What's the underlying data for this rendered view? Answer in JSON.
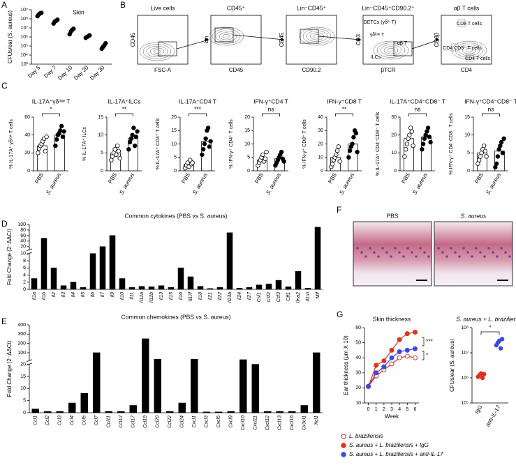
{
  "panel_labels": [
    "A",
    "B",
    "C",
    "D",
    "E",
    "F",
    "G"
  ],
  "gating": {
    "plots": [
      {
        "title": "Live cells",
        "y_label": "CD45",
        "x_label": "FSC-A",
        "gates": []
      },
      {
        "title": "CD45⁺",
        "y_label": "Lin",
        "x_label": "CD45",
        "gates": []
      },
      {
        "title": "Lin⁻CD45⁺",
        "y_label": "CD45",
        "x_label": "CD90.2",
        "gates": []
      },
      {
        "title": "Lin⁻CD45⁺CD90.2⁺",
        "y_label": "CD3",
        "x_label": "βTCR",
        "gates": [
          "DETCs (γδʰⁱ T)",
          "γδˡᵒʷ T",
          "αβ T",
          "ILCs"
        ]
      },
      {
        "title": "αβ T cells",
        "y_label": "CD8β",
        "x_label": "CD4",
        "gates": [
          "CD8 T cells",
          "CD4 CD8⁻ T cells",
          "CD4 T cells"
        ]
      }
    ]
  },
  "histology": {
    "panels": [
      "PBS",
      "S. aureus"
    ]
  },
  "chart_data": [
    {
      "type": "dot",
      "title": "Skin",
      "y_label": "CFUs/ear (S. aureus)",
      "categories": [
        "Day 5",
        "Day 7",
        "Day 10",
        "Day 20",
        "Day 30"
      ],
      "values": [
        [
          200000000,
          300000000,
          400000000,
          450000000
        ],
        [
          30000000,
          50000000,
          60000000,
          80000000
        ],
        [
          2000000,
          4000000,
          6000000,
          8000000
        ],
        [
          800000,
          1000000,
          1200000,
          1500000
        ],
        [
          50000,
          80000,
          120000,
          200000
        ]
      ],
      "color": "#000000",
      "log_scale": true,
      "ylim": [
        1000,
        1000000000
      ],
      "yticks": [
        {
          "value": 1000,
          "label": "10³"
        },
        {
          "value": 10000,
          "label": "10⁴"
        },
        {
          "value": 100000,
          "label": "10⁵"
        },
        {
          "value": 1000000,
          "label": "10⁶"
        },
        {
          "value": 10000000,
          "label": "10⁷"
        },
        {
          "value": 100000000,
          "label": "10⁸"
        },
        {
          "value": 1000000000,
          "label": "10⁹"
        }
      ]
    },
    {
      "type": "bar",
      "title": "IL-17A⁺γδˡᵒʷ T",
      "y_label": "% IL-17A⁺ γδˡᵒʷ T cells",
      "categories": [
        "PBS",
        "S. aureus"
      ],
      "values": [
        28,
        40
      ],
      "points": [
        [
          20,
          25,
          28,
          30,
          33,
          36,
          22,
          38
        ],
        [
          28,
          35,
          40,
          42,
          45,
          50,
          38,
          44
        ]
      ],
      "bar_colors": [
        "#ffffff",
        "#ffffff"
      ],
      "point_fills": [
        "#ffffff",
        "#000000"
      ],
      "annotation": "*",
      "ylim": [
        0,
        60
      ],
      "yticks": [
        0,
        20,
        40,
        60
      ]
    },
    {
      "type": "bar",
      "title": "IL-17A⁺ILCs",
      "y_label": "% IL-17A⁺ ILCs",
      "categories": [
        "PBS",
        "S. aureus"
      ],
      "values": [
        5,
        9
      ],
      "points": [
        [
          3,
          4,
          5,
          6,
          4.5,
          7,
          5.5,
          3.5
        ],
        [
          6,
          8,
          9,
          10,
          12,
          7,
          9.5,
          11
        ]
      ],
      "bar_colors": [
        "#ffffff",
        "#ffffff"
      ],
      "point_fills": [
        "#ffffff",
        "#000000"
      ],
      "annotation": "**",
      "ylim": [
        0,
        15
      ],
      "yticks": [
        0,
        5,
        10,
        15
      ]
    },
    {
      "type": "bar",
      "title": "IL-17A⁺CD4 T",
      "y_label": "% IL-17A⁺ CD4⁺ T cells",
      "categories": [
        "PBS",
        "S. aureus"
      ],
      "values": [
        2.5,
        11
      ],
      "points": [
        [
          1,
          2,
          3,
          1.5,
          4,
          2.5,
          3
        ],
        [
          6,
          8,
          10,
          12,
          15,
          16,
          9,
          11
        ]
      ],
      "bar_colors": [
        "#ffffff",
        "#ffffff"
      ],
      "point_fills": [
        "#ffffff",
        "#000000"
      ],
      "annotation": "***",
      "ylim": [
        0,
        20
      ],
      "yticks": [
        0,
        5,
        10,
        15,
        20
      ]
    },
    {
      "type": "bar",
      "title": "IFN-γ⁺CD4 T",
      "y_label": "% IFN-γ⁺ CD4⁺ T cells",
      "categories": [
        "PBS",
        "S. aureus"
      ],
      "values": [
        4,
        4.5
      ],
      "points": [
        [
          2,
          3,
          4,
          5,
          6,
          3.5,
          4.5,
          7
        ],
        [
          2,
          3,
          4,
          5,
          6,
          7,
          4.5,
          3.5
        ]
      ],
      "bar_colors": [
        "#ffffff",
        "#ffffff"
      ],
      "point_fills": [
        "#ffffff",
        "#000000"
      ],
      "annotation": "ns",
      "ylim": [
        0,
        20
      ],
      "yticks": [
        0,
        5,
        10,
        15,
        20
      ]
    },
    {
      "type": "bar",
      "title": "IFN-γ⁺CD8 T",
      "y_label": "% IFN-γ⁺ CD8⁺ T cells",
      "categories": [
        "PBS",
        "S. aureus"
      ],
      "values": [
        10,
        20
      ],
      "points": [
        [
          3,
          5,
          8,
          10,
          12,
          15,
          18,
          7
        ],
        [
          10,
          15,
          18,
          20,
          25,
          30,
          28,
          14
        ]
      ],
      "bar_colors": [
        "#ffffff",
        "#ffffff"
      ],
      "point_fills": [
        "#ffffff",
        "#000000"
      ],
      "annotation": "**",
      "ylim": [
        0,
        40
      ],
      "yticks": [
        0,
        10,
        20,
        30,
        40
      ]
    },
    {
      "type": "bar",
      "title": "IL-17A⁺CD4⁻CD8⁻ T",
      "y_label": "% IL-17A⁺ CD4⁻CD8⁻ T cells",
      "categories": [
        "PBS",
        "S. aureus"
      ],
      "values": [
        18,
        19
      ],
      "points": [
        [
          8,
          12,
          15,
          18,
          20,
          24,
          22,
          14
        ],
        [
          12,
          15,
          18,
          20,
          22,
          24,
          19,
          16
        ]
      ],
      "bar_colors": [
        "#ffffff",
        "#ffffff"
      ],
      "point_fills": [
        "#ffffff",
        "#000000"
      ],
      "annotation": "ns",
      "ylim": [
        0,
        30
      ],
      "yticks": [
        0,
        10,
        20,
        30
      ]
    },
    {
      "type": "bar",
      "title": "IFN-γ⁺CD4⁻CD8⁻ T",
      "y_label": "% IFN-γ⁺ CD4⁻CD8⁻ T cells",
      "categories": [
        "PBS",
        "S. aureus"
      ],
      "values": [
        5,
        5.5
      ],
      "points": [
        [
          2,
          3,
          4,
          5,
          6,
          7,
          5.5,
          4
        ],
        [
          1,
          2,
          4,
          6,
          7,
          8,
          5,
          9
        ]
      ],
      "bar_colors": [
        "#ffffff",
        "#ffffff"
      ],
      "point_fills": [
        "#ffffff",
        "#000000"
      ],
      "annotation": "ns",
      "ylim": [
        0,
        15
      ],
      "yticks": [
        0,
        5,
        10,
        15
      ]
    },
    {
      "type": "bar",
      "title": "Common cytokines (PBS vs S. aureus)",
      "y_label": "Fold Change (2⁻ΔΔCt)",
      "categories": [
        "Il1a",
        "Il1b",
        "Il2",
        "Il3",
        "Il4",
        "Il5",
        "Il6",
        "Il7",
        "Il9",
        "Il10",
        "Il11",
        "Il12a",
        "Il12b",
        "Il13",
        "Il15",
        "Il16",
        "Il17f",
        "Il18",
        "Il21",
        "Il22",
        "Il23a",
        "Il24",
        "Il27",
        "Csf1",
        "Csf2",
        "Csf3",
        "Ctf1",
        "Ifna2",
        "Il1rn",
        "Mif"
      ],
      "values": [
        3,
        50,
        6,
        1,
        2,
        0.5,
        10,
        20,
        60,
        3,
        0.5,
        0.8,
        0.7,
        1,
        0.5,
        6,
        3.5,
        0.8,
        0.2,
        0.5,
        70,
        0.3,
        0.5,
        1.2,
        1.5,
        2.5,
        0.7,
        5,
        0.3,
        90
      ],
      "color": "#000000",
      "y_segments": [
        {
          "ylim": [
            0,
            10
          ],
          "yticks": [
            0,
            2,
            4,
            6,
            8,
            10
          ]
        },
        {
          "ylim": [
            10,
            100
          ],
          "yticks": [
            20,
            40,
            60,
            80,
            100
          ]
        }
      ]
    },
    {
      "type": "bar",
      "title": "Common chemokines (PBS vs S. aureus)",
      "y_label": "Fold Change (2⁻ΔΔCt)",
      "categories": [
        "Ccl1",
        "Ccl2",
        "Ccl3",
        "Ccl4",
        "Ccl5",
        "Ccl7",
        "Ccl11",
        "Ccl12",
        "Ccl17",
        "Ccl19",
        "Ccl20",
        "Ccl22",
        "Ccl24",
        "Cxcl1",
        "Cxcl3",
        "Cxcl5",
        "Cxcl9",
        "Cxcl10",
        "Cxcl11",
        "Cxcl12",
        "Cxcl13",
        "Cxcl16",
        "Cx3cl1",
        "Xcl1"
      ],
      "values": [
        1.5,
        0.5,
        0.5,
        4,
        8,
        100,
        0.5,
        0.5,
        3,
        250,
        30,
        0.5,
        4,
        30,
        0.3,
        0.3,
        0.5,
        25,
        20,
        0.5,
        0.5,
        0.5,
        3,
        100
      ],
      "color": "#000000",
      "y_segments": [
        {
          "ylim": [
            0,
            20
          ],
          "yticks": [
            0,
            5,
            10,
            15,
            20
          ]
        },
        {
          "ylim": [
            20,
            400
          ],
          "yticks": [
            100,
            200,
            300,
            400
          ]
        }
      ]
    },
    {
      "type": "line",
      "title": "Skin thickness",
      "x_label": "Week",
      "y_label": "Ear thickness (μm X 10)",
      "x": [
        0,
        1,
        2,
        3,
        4,
        5,
        6
      ],
      "xlim": [
        -0.5,
        6.5
      ],
      "xticks": [
        0,
        1,
        2,
        3,
        4,
        5,
        6
      ],
      "ylim": [
        10,
        60
      ],
      "yticks": [
        10,
        20,
        30,
        40,
        50,
        60
      ],
      "annotations": [
        "***",
        "*"
      ],
      "series": [
        {
          "name": "L. braziliensis",
          "color": "#e0301e",
          "filled": false,
          "values": [
            21,
            28,
            32,
            36,
            40,
            41,
            40
          ]
        },
        {
          "name": "S. aureus + L. braziliensis + IgG",
          "color": "#e0301e",
          "filled": true,
          "values": [
            21,
            35,
            38,
            45,
            52,
            56,
            57
          ]
        },
        {
          "name": "S. aureus + L. braziliensis + anti-IL-17",
          "color": "#3b49e0",
          "filled": true,
          "values": [
            21,
            30,
            34,
            40,
            44,
            45,
            46
          ]
        }
      ]
    },
    {
      "type": "dot",
      "title": "S. aureus + L. braziliensis",
      "y_label": "CFUs/ear (S. aureus)",
      "categories": [
        "IgG",
        "anti-IL-17"
      ],
      "values": [
        [
          1100000,
          1300000,
          1500000,
          1000000,
          1400000
        ],
        [
          20000000,
          25000000,
          30000000,
          15000000,
          35000000
        ]
      ],
      "point_fills": [
        "#e0301e",
        "#3b49e0"
      ],
      "annotation": "*",
      "log_scale": true,
      "ylim": [
        100000,
        100000000
      ],
      "yticks": [
        {
          "value": 100000,
          "label": "10⁵"
        },
        {
          "value": 1000000,
          "label": "10⁶"
        },
        {
          "value": 10000000,
          "label": "10⁷"
        },
        {
          "value": 100000000,
          "label": "10⁸"
        }
      ]
    }
  ]
}
